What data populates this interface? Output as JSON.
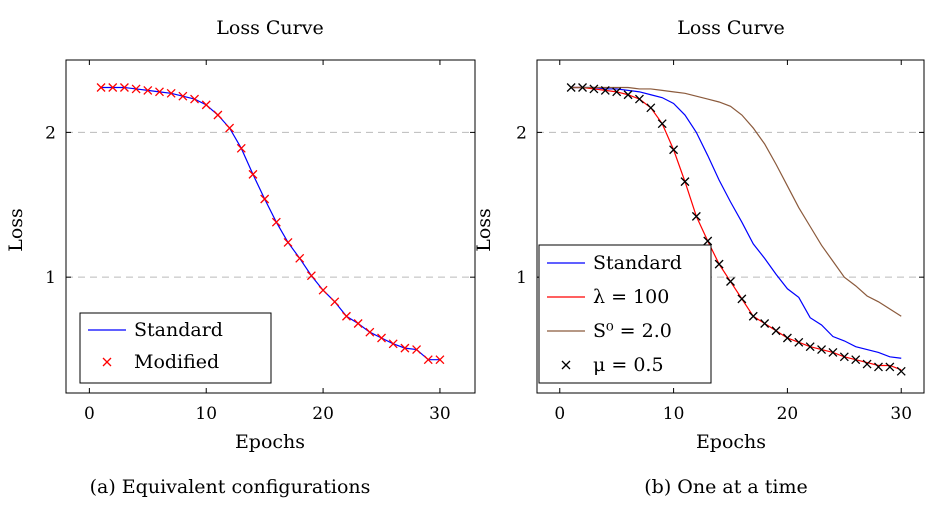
{
  "chart_data": [
    {
      "type": "line",
      "title": "Loss Curve",
      "xlabel": "Epochs",
      "ylabel": "Loss",
      "xlim": [
        -2,
        33
      ],
      "ylim": [
        0.2,
        2.5
      ],
      "xticks": [
        0,
        10,
        20,
        30
      ],
      "yticks": [
        1,
        2
      ],
      "grid": "horizontal dashed at y ticks",
      "legend_position": "bottom-left",
      "caption": "(a) Equivalent configurations",
      "x": [
        1,
        2,
        3,
        4,
        5,
        6,
        7,
        8,
        9,
        10,
        11,
        12,
        13,
        14,
        15,
        16,
        17,
        18,
        19,
        20,
        21,
        22,
        23,
        24,
        25,
        26,
        27,
        28,
        29,
        30
      ],
      "series": [
        {
          "name": "Standard",
          "style": "line",
          "color": "#0000ff",
          "values": [
            2.31,
            2.31,
            2.31,
            2.3,
            2.29,
            2.28,
            2.27,
            2.25,
            2.23,
            2.19,
            2.12,
            2.03,
            1.89,
            1.71,
            1.54,
            1.38,
            1.24,
            1.13,
            1.01,
            0.91,
            0.83,
            0.73,
            0.68,
            0.62,
            0.58,
            0.54,
            0.51,
            0.5,
            0.43,
            0.43
          ]
        },
        {
          "name": "Modified",
          "style": "marker",
          "marker": "x",
          "color": "#ff0000",
          "values": [
            2.31,
            2.31,
            2.31,
            2.3,
            2.29,
            2.28,
            2.27,
            2.25,
            2.23,
            2.19,
            2.12,
            2.03,
            1.89,
            1.71,
            1.54,
            1.38,
            1.24,
            1.13,
            1.01,
            0.91,
            0.83,
            0.73,
            0.68,
            0.62,
            0.58,
            0.54,
            0.51,
            0.5,
            0.43,
            0.43
          ]
        }
      ]
    },
    {
      "type": "line",
      "title": "Loss Curve",
      "xlabel": "Epochs",
      "ylabel": "Loss",
      "xlim": [
        -2,
        32
      ],
      "ylim": [
        0.2,
        2.5
      ],
      "xticks": [
        0,
        10,
        20,
        30
      ],
      "yticks": [
        1,
        2
      ],
      "grid": "horizontal dashed at y ticks",
      "legend_position": "bottom-left",
      "caption": "(b) One at a time",
      "x": [
        1,
        2,
        3,
        4,
        5,
        6,
        7,
        8,
        9,
        10,
        11,
        12,
        13,
        14,
        15,
        16,
        17,
        18,
        19,
        20,
        21,
        22,
        23,
        24,
        25,
        26,
        27,
        28,
        29,
        30
      ],
      "series": [
        {
          "name": "Standard",
          "style": "line",
          "color": "#0000ff",
          "values": [
            2.31,
            2.31,
            2.31,
            2.3,
            2.3,
            2.29,
            2.28,
            2.26,
            2.24,
            2.2,
            2.12,
            2.0,
            1.84,
            1.67,
            1.52,
            1.38,
            1.23,
            1.13,
            1.02,
            0.92,
            0.86,
            0.72,
            0.67,
            0.59,
            0.56,
            0.52,
            0.5,
            0.48,
            0.45,
            0.44
          ]
        },
        {
          "name": "λ = 100",
          "style": "line",
          "color": "#ff0000",
          "values": [
            2.31,
            2.31,
            2.3,
            2.29,
            2.28,
            2.26,
            2.23,
            2.17,
            2.06,
            1.88,
            1.66,
            1.42,
            1.25,
            1.09,
            0.97,
            0.85,
            0.73,
            0.68,
            0.63,
            0.58,
            0.55,
            0.52,
            0.5,
            0.48,
            0.45,
            0.43,
            0.41,
            0.39,
            0.39,
            0.36
          ]
        },
        {
          "name": "S⁰ = 2.0",
          "style": "line",
          "color": "#8b5a3c",
          "values": [
            2.31,
            2.31,
            2.31,
            2.31,
            2.31,
            2.31,
            2.3,
            2.3,
            2.29,
            2.28,
            2.27,
            2.25,
            2.23,
            2.21,
            2.18,
            2.12,
            2.03,
            1.92,
            1.78,
            1.63,
            1.48,
            1.35,
            1.22,
            1.11,
            1.0,
            0.94,
            0.87,
            0.83,
            0.78,
            0.73
          ]
        },
        {
          "name": "μ = 0.5",
          "style": "marker",
          "marker": "x",
          "color": "#000000",
          "values": [
            2.31,
            2.31,
            2.3,
            2.29,
            2.28,
            2.26,
            2.23,
            2.17,
            2.06,
            1.88,
            1.66,
            1.42,
            1.25,
            1.09,
            0.97,
            0.85,
            0.73,
            0.68,
            0.63,
            0.58,
            0.55,
            0.52,
            0.5,
            0.48,
            0.45,
            0.43,
            0.4,
            0.38,
            0.38,
            0.35
          ]
        }
      ]
    }
  ]
}
